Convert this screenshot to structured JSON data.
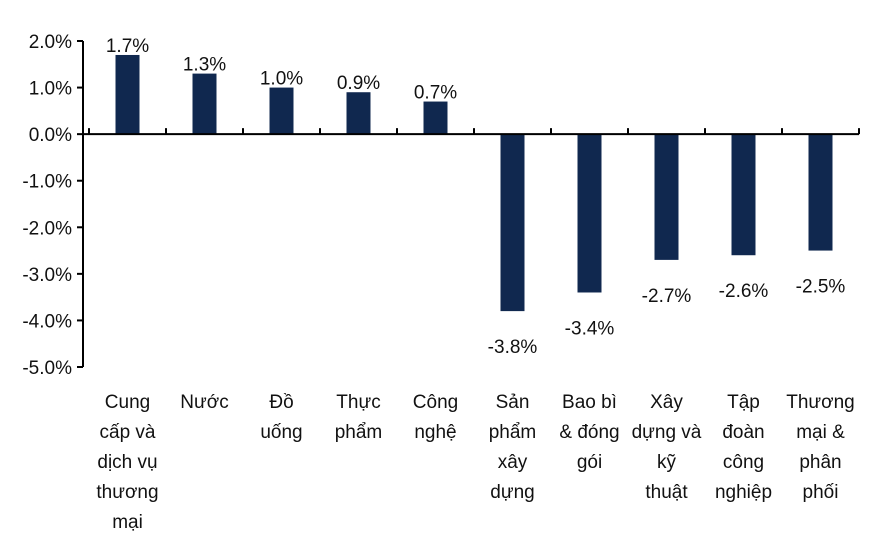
{
  "chart_data": {
    "type": "bar",
    "title": "",
    "xlabel": "",
    "ylabel": "",
    "categories": [
      [
        "Cung",
        "cấp và",
        "dịch vụ",
        "thương",
        "mại"
      ],
      [
        "Nước"
      ],
      [
        "Đồ",
        "uống"
      ],
      [
        "Thực",
        "phẩm"
      ],
      [
        "Công",
        "nghệ"
      ],
      [
        "Sản",
        "phẩm",
        "xây",
        "dựng"
      ],
      [
        "Bao bì",
        "& đóng",
        "gói"
      ],
      [
        "Xây",
        "dựng và",
        "kỹ",
        "thuật"
      ],
      [
        "Tập",
        "đoàn",
        "công",
        "nghiệp"
      ],
      [
        "Thương",
        "mại &",
        "phân",
        "phối"
      ]
    ],
    "values": [
      1.7,
      1.3,
      1.0,
      0.9,
      0.7,
      -3.8,
      -3.4,
      -2.7,
      -2.6,
      -2.5
    ],
    "data_labels": [
      "1.7%",
      "1.3%",
      "1.0%",
      "0.9%",
      "0.7%",
      "-3.8%",
      "-3.4%",
      "-2.7%",
      "-2.6%",
      "-2.5%"
    ],
    "ylim": [
      -5.0,
      2.0
    ],
    "yticks": [
      2.0,
      1.0,
      0.0,
      -1.0,
      -2.0,
      -3.0,
      -4.0,
      -5.0
    ],
    "ytick_labels": [
      "2.0%",
      "1.0%",
      "0.0%",
      "-1.0%",
      "-2.0%",
      "-3.0%",
      "-4.0%",
      "-5.0%"
    ],
    "grid": false,
    "legend": "none",
    "bar_color": "#10284f"
  }
}
